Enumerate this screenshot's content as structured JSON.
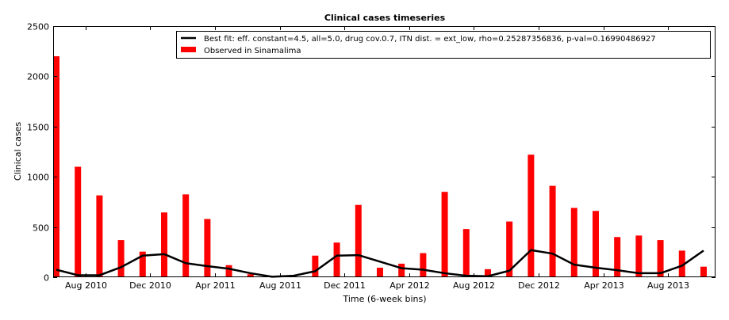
{
  "chart_data": {
    "type": "bar",
    "title": "Clinical cases timeseries",
    "xlabel": "Time (6-week bins)",
    "ylabel": "Clinical cases",
    "ylim": [
      0,
      2500
    ],
    "yticks": [
      0,
      500,
      1000,
      1500,
      2000,
      2500
    ],
    "xticks": [
      {
        "pos": 1.5,
        "label": "Aug 2010"
      },
      {
        "pos": 4.5,
        "label": "Dec 2010"
      },
      {
        "pos": 7.5,
        "label": "Apr 2011"
      },
      {
        "pos": 10.5,
        "label": "Aug 2011"
      },
      {
        "pos": 13.5,
        "label": "Dec 2011"
      },
      {
        "pos": 16.5,
        "label": "Apr 2012"
      },
      {
        "pos": 19.5,
        "label": "Aug 2012"
      },
      {
        "pos": 22.5,
        "label": "Dec 2012"
      },
      {
        "pos": 25.5,
        "label": "Apr 2013"
      },
      {
        "pos": 28.5,
        "label": "Aug 2013"
      }
    ],
    "legend_position": "top-right",
    "grid": false,
    "series": [
      {
        "name": "Observed in Sinamalima",
        "kind": "bar",
        "color": "#ff0000",
        "values": [
          2200,
          1100,
          815,
          370,
          255,
          645,
          825,
          580,
          120,
          30,
          10,
          10,
          215,
          345,
          720,
          95,
          135,
          240,
          850,
          480,
          80,
          555,
          1220,
          910,
          690,
          660,
          400,
          415,
          370,
          265,
          105
        ]
      },
      {
        "name": "Best fit: eff. constant=4.5, all=5.0, drug cov.0.7, ITN dist. = ext_low, rho=0.25287356836, p-val=0.16990486927",
        "kind": "line",
        "color": "#000000",
        "values": [
          75,
          20,
          20,
          100,
          215,
          230,
          140,
          110,
          85,
          40,
          5,
          15,
          60,
          215,
          220,
          155,
          90,
          75,
          40,
          15,
          10,
          65,
          270,
          235,
          125,
          95,
          70,
          40,
          40,
          115,
          265
        ]
      }
    ]
  }
}
